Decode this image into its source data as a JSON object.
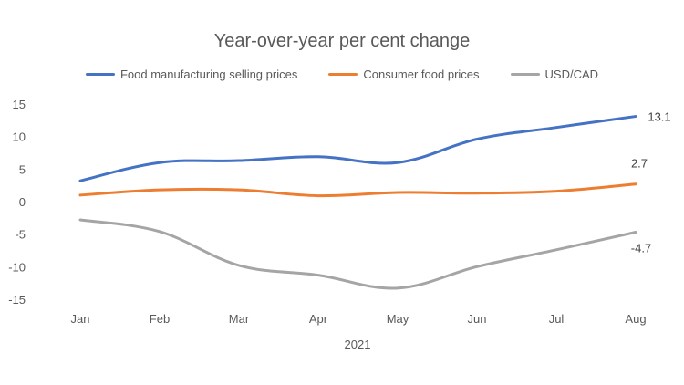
{
  "chart_data": {
    "type": "line",
    "title": "Year-over-year per cent change",
    "xlabel": "2021",
    "ylabel": "",
    "categories": [
      "Jan",
      "Feb",
      "Mar",
      "Apr",
      "May",
      "Jun",
      "Jul",
      "Aug"
    ],
    "ylim": [
      -15,
      15
    ],
    "yticks": [
      "15",
      "10",
      "5",
      "0",
      "-5",
      "-10",
      "-15"
    ],
    "ytick_values": [
      15,
      10,
      5,
      0,
      -5,
      -10,
      -15
    ],
    "grid": false,
    "legend_position": "top",
    "series": [
      {
        "name": "Food manufacturing selling prices",
        "color": "#4472C4",
        "values": [
          3.2,
          6.0,
          6.3,
          6.9,
          6.0,
          9.6,
          11.4,
          13.1
        ],
        "end_label": "13.1"
      },
      {
        "name": "Consumer food prices",
        "color": "#ED7D31",
        "values": [
          1.0,
          1.8,
          1.8,
          0.9,
          1.4,
          1.3,
          1.6,
          2.7
        ],
        "end_label": "2.7"
      },
      {
        "name": "USD/CAD",
        "color": "#A5A5A5",
        "values": [
          -2.8,
          -4.6,
          -9.8,
          -11.3,
          -13.3,
          -10.0,
          -7.4,
          -4.7
        ],
        "end_label": "-4.7"
      }
    ]
  }
}
